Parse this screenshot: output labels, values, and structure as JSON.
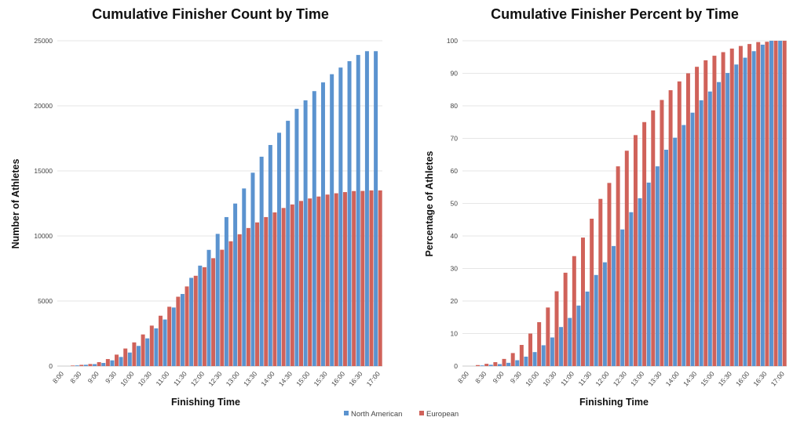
{
  "chart_data": [
    {
      "type": "bar",
      "title": "Cumulative Finisher Count by Time",
      "xlabel": "Finishing Time",
      "ylabel": "Number of Athletes",
      "ylim": [
        0,
        25000
      ],
      "yticks": [
        0,
        5000,
        10000,
        15000,
        20000,
        25000
      ],
      "grid": true,
      "categories": [
        "8:00",
        "8:15",
        "8:30",
        "8:45",
        "9:00",
        "9:15",
        "9:30",
        "9:45",
        "10:00",
        "10:15",
        "10:30",
        "10:45",
        "11:00",
        "11:15",
        "11:30",
        "11:45",
        "12:00",
        "12:15",
        "12:30",
        "12:45",
        "13:00",
        "13:15",
        "13:30",
        "13:45",
        "14:00",
        "14:15",
        "14:30",
        "14:45",
        "15:00",
        "15:15",
        "15:30",
        "15:45",
        "16:00",
        "16:15",
        "16:30",
        "16:45",
        "17:00"
      ],
      "series": [
        {
          "name": "North American",
          "color": "#5b93cf",
          "values": [
            0,
            0,
            50,
            100,
            150,
            240,
            440,
            700,
            1040,
            1550,
            2130,
            2900,
            3580,
            4500,
            5540,
            6780,
            7720,
            8930,
            10160,
            11450,
            12490,
            13650,
            14860,
            16090,
            16990,
            17930,
            18850,
            19770,
            20420,
            21130,
            21800,
            22430,
            22940,
            23430,
            23910,
            24200,
            24200
          ]
        },
        {
          "name": "European",
          "color": "#d0625a",
          "values": [
            0,
            40,
            95,
            160,
            300,
            540,
            880,
            1350,
            1820,
            2430,
            3110,
            3870,
            4560,
            5330,
            6120,
            6940,
            7600,
            8290,
            8940,
            9590,
            10130,
            10610,
            11040,
            11450,
            11810,
            12150,
            12420,
            12690,
            12880,
            13030,
            13180,
            13280,
            13370,
            13450,
            13460,
            13500,
            13500
          ]
        }
      ]
    },
    {
      "type": "bar",
      "title": "Cumulative Finisher Percent by Time",
      "xlabel": "Finishing Time",
      "ylabel": "Percentage of Athletes",
      "ylim": [
        0,
        100
      ],
      "yticks": [
        0,
        10,
        20,
        30,
        40,
        50,
        60,
        70,
        80,
        90,
        100
      ],
      "grid": true,
      "categories": [
        "8:00",
        "8:15",
        "8:30",
        "8:45",
        "9:00",
        "9:15",
        "9:30",
        "9:45",
        "10:00",
        "10:15",
        "10:30",
        "10:45",
        "11:00",
        "11:15",
        "11:30",
        "11:45",
        "12:00",
        "12:15",
        "12:30",
        "12:45",
        "13:00",
        "13:15",
        "13:30",
        "13:45",
        "14:00",
        "14:15",
        "14:30",
        "14:45",
        "15:00",
        "15:15",
        "15:30",
        "15:45",
        "16:00",
        "16:15",
        "16:30",
        "16:45",
        "17:00"
      ],
      "series": [
        {
          "name": "North American",
          "color": "#5b93cf",
          "values": [
            0,
            0,
            0.2,
            0.4,
            0.6,
            1,
            1.8,
            2.9,
            4.3,
            6.4,
            8.8,
            12,
            14.8,
            18.6,
            22.9,
            28,
            31.9,
            36.9,
            42,
            47.3,
            51.6,
            56.4,
            61.4,
            66.5,
            70.2,
            74.1,
            77.9,
            81.7,
            84.4,
            87.3,
            90.1,
            92.7,
            94.8,
            96.8,
            98.8,
            100,
            100
          ]
        },
        {
          "name": "European",
          "color": "#d0625a",
          "values": [
            0,
            0.3,
            0.7,
            1.2,
            2.2,
            4,
            6.5,
            10,
            13.5,
            18,
            23,
            28.7,
            33.8,
            39.5,
            45.3,
            51.4,
            56.3,
            61.4,
            66.2,
            71,
            75,
            78.6,
            81.8,
            84.8,
            87.5,
            90,
            92,
            94,
            95.4,
            96.5,
            97.6,
            98.4,
            99,
            99.6,
            99.7,
            100,
            100
          ]
        }
      ]
    }
  ],
  "legend": {
    "position": "bottom-center",
    "items": [
      {
        "label": "North American",
        "color": "#5b93cf"
      },
      {
        "label": "European",
        "color": "#d0625a"
      }
    ]
  }
}
